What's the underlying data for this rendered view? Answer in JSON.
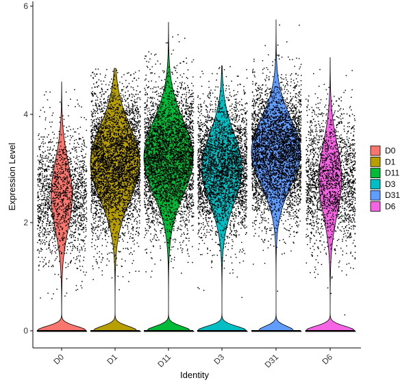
{
  "chart_data": {
    "type": "violin",
    "xlabel": "Identity",
    "ylabel": "Expression Level",
    "ylim": [
      -0.35,
      6.05
    ],
    "yticks": [
      0,
      2,
      4,
      6
    ],
    "categories": [
      "D0",
      "D1",
      "D11",
      "D3",
      "D31",
      "D6"
    ],
    "colors": [
      "#F8766D",
      "#B79F00",
      "#00BA38",
      "#00BFC4",
      "#619CFF",
      "#F564E3"
    ],
    "series": [
      {
        "name": "D0",
        "zero_fraction": 0.24,
        "median": 2.5,
        "sd": 0.62,
        "max": 4.6,
        "points": 2200
      },
      {
        "name": "D1",
        "zero_fraction": 0.1,
        "median": 3.1,
        "sd": 0.68,
        "max": 4.85,
        "points": 4200
      },
      {
        "name": "D11",
        "zero_fraction": 0.1,
        "median": 3.2,
        "sd": 0.68,
        "max": 5.7,
        "points": 4200
      },
      {
        "name": "D3",
        "zero_fraction": 0.14,
        "median": 3.0,
        "sd": 0.64,
        "max": 4.9,
        "points": 3800
      },
      {
        "name": "D31",
        "zero_fraction": 0.09,
        "median": 3.3,
        "sd": 0.62,
        "max": 5.75,
        "points": 4300
      },
      {
        "name": "D6",
        "zero_fraction": 0.22,
        "median": 2.8,
        "sd": 0.65,
        "max": 5.05,
        "points": 2600
      }
    ],
    "legend": {
      "position": "right",
      "entries": [
        "D0",
        "D1",
        "D11",
        "D3",
        "D31",
        "D6"
      ]
    },
    "grid": false
  }
}
